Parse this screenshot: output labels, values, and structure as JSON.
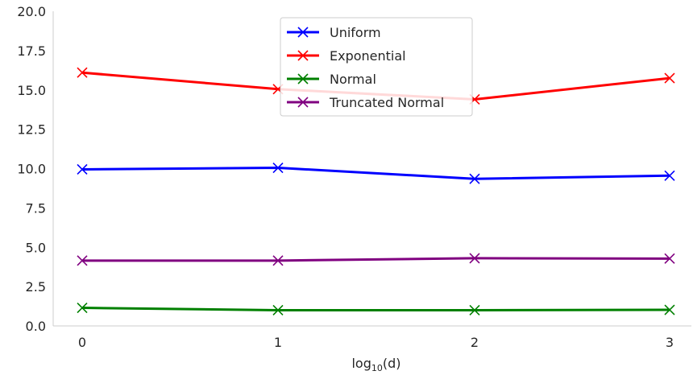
{
  "chart_data": {
    "type": "line",
    "x": [
      0,
      1,
      2,
      3
    ],
    "xticks": [
      "0",
      "1",
      "2",
      "3"
    ],
    "xlabel": {
      "base": "log",
      "sub": "10",
      "arg": "(d)"
    },
    "ylim": [
      0,
      20
    ],
    "yticks": [
      "0.0",
      "2.5",
      "5.0",
      "7.5",
      "10.0",
      "12.5",
      "15.0",
      "17.5",
      "20.0"
    ],
    "grid": false,
    "legend_position": "upper center",
    "marker": "x",
    "series": [
      {
        "name": "Uniform",
        "color": "#0000ff",
        "values": [
          9.95,
          10.05,
          9.35,
          9.55
        ]
      },
      {
        "name": "Exponential",
        "color": "#ff0000",
        "values": [
          16.1,
          15.05,
          14.4,
          15.75
        ]
      },
      {
        "name": "Normal",
        "color": "#008000",
        "values": [
          1.15,
          1.0,
          1.0,
          1.02
        ]
      },
      {
        "name": "Truncated Normal",
        "color": "#800080",
        "values": [
          4.15,
          4.15,
          4.3,
          4.28
        ]
      }
    ]
  }
}
